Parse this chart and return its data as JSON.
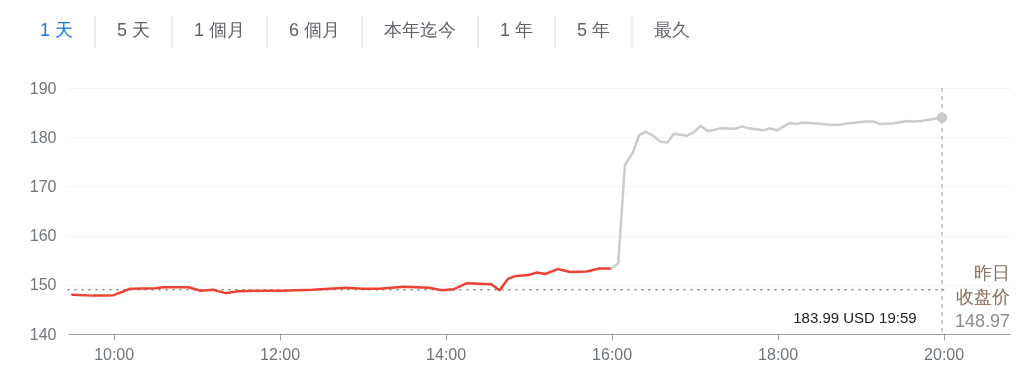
{
  "chart_data": {
    "type": "line",
    "series": [
      {
        "color": "#ea4335",
        "x": [
          9.5,
          9.75,
          9.9,
          10.0,
          10.2,
          10.5,
          10.6,
          10.9,
          11.05,
          11.2,
          11.35,
          11.5,
          11.8,
          12.0,
          12.2,
          12.4,
          12.6,
          12.8,
          13.0,
          13.2,
          13.5,
          13.8,
          13.95,
          14.1,
          14.25,
          14.4,
          14.55,
          14.65,
          14.75,
          14.85,
          15.0,
          15.1,
          15.2,
          15.35,
          15.5,
          15.7,
          15.85,
          16.0
        ],
        "values": [
          148.0,
          147.8,
          147.8,
          147.9,
          149.2,
          149.3,
          149.5,
          149.5,
          148.8,
          149.0,
          148.3,
          148.7,
          148.8,
          148.8,
          148.9,
          149.0,
          149.2,
          149.4,
          149.2,
          149.2,
          149.6,
          149.4,
          148.9,
          149.1,
          150.3,
          150.2,
          150.1,
          148.9,
          151.2,
          151.8,
          152.0,
          152.5,
          152.2,
          153.2,
          152.6,
          152.7,
          153.3,
          153.3
        ]
      },
      {
        "color": "#cccccc",
        "x": [
          16.0,
          16.08,
          16.16,
          16.26,
          16.33,
          16.41,
          16.49,
          16.59,
          16.67,
          16.75,
          16.91,
          16.99,
          17.07,
          17.16,
          17.31,
          17.49,
          17.57,
          17.65,
          17.83,
          17.91,
          17.99,
          18.15,
          18.23,
          18.31,
          18.47,
          18.59,
          18.73,
          18.83,
          19.07,
          19.15,
          19.23,
          19.39,
          19.55,
          19.63,
          19.73,
          19.87,
          19.98
        ],
        "values": [
          153.3,
          154.4,
          174.3,
          177.0,
          180.4,
          181.1,
          180.4,
          179.1,
          178.9,
          180.7,
          180.3,
          181.0,
          182.3,
          181.2,
          181.8,
          181.7,
          182.2,
          181.8,
          181.4,
          181.8,
          181.4,
          182.9,
          182.7,
          183.0,
          182.8,
          182.6,
          182.5,
          182.8,
          183.2,
          183.2,
          182.7,
          182.8,
          183.3,
          183.2,
          183.3,
          183.7,
          183.99
        ]
      }
    ],
    "xlim": [
      9.45,
      20.8
    ],
    "xticks": [
      {
        "value": 10,
        "label": "10:00"
      },
      {
        "value": 12,
        "label": "12:00"
      },
      {
        "value": 14,
        "label": "14:00"
      },
      {
        "value": 16,
        "label": "16:00"
      },
      {
        "value": 18,
        "label": "18:00"
      },
      {
        "value": 20,
        "label": "20:00"
      }
    ],
    "ylim": [
      140,
      190
    ],
    "yticks": [
      140,
      150,
      160,
      170,
      180,
      190
    ],
    "grid": "y",
    "ref_lines": [
      {
        "axis": "y",
        "value": 148.97,
        "label": "昨日收盘价 148.97",
        "line_style": "dotted"
      },
      {
        "axis": "x",
        "value": 19.98,
        "line_style": "dashed"
      }
    ],
    "annotations": [
      "1 天",
      "5 天",
      "1 個月",
      "6 個月",
      "本年迄今",
      "1 年",
      "5 年",
      "最久",
      "183.99 USD 19:59"
    ]
  }
}
